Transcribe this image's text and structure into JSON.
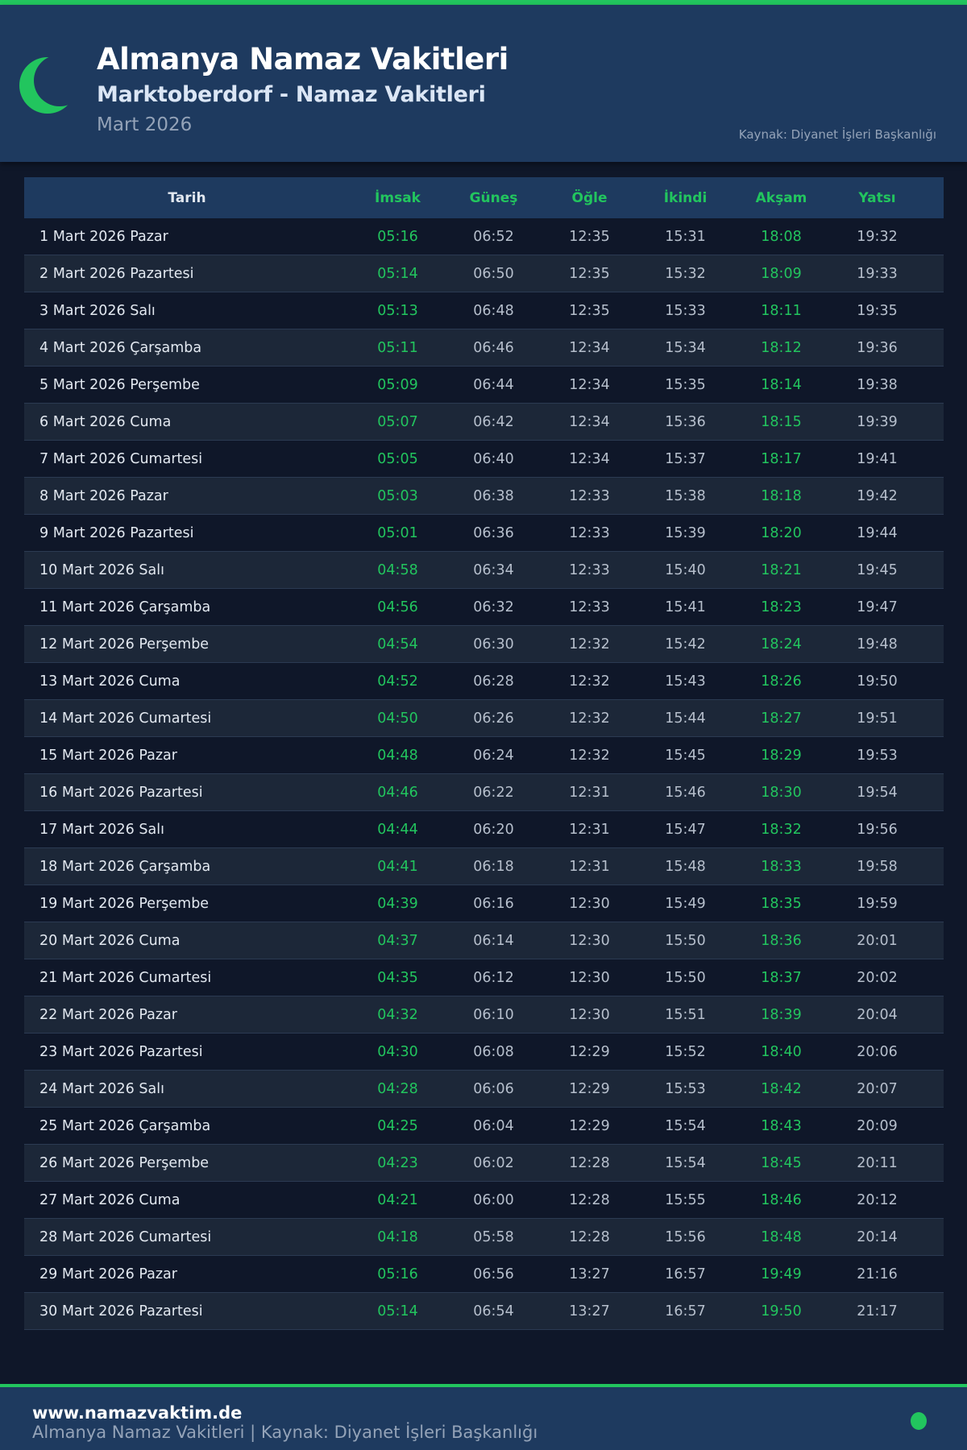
{
  "header": {
    "title": "Almanya Namaz Vakitleri",
    "subtitle": "Marktoberdorf - Namaz Vakitleri",
    "month": "Mart 2026",
    "source": "Kaynak: Diyanet İşleri Başkanlığı",
    "icon": "crescent-moon-icon"
  },
  "colors": {
    "accent": "#22c55e",
    "header_bg": "#1e3a5f",
    "page_bg": "#0f1729"
  },
  "table": {
    "columns": [
      "Tarih",
      "İmsak",
      "Güneş",
      "Öğle",
      "İkindi",
      "Akşam",
      "Yatsı"
    ],
    "rows": [
      [
        "1 Mart 2026 Pazar",
        "05:16",
        "06:52",
        "12:35",
        "15:31",
        "18:08",
        "19:32"
      ],
      [
        "2 Mart 2026 Pazartesi",
        "05:14",
        "06:50",
        "12:35",
        "15:32",
        "18:09",
        "19:33"
      ],
      [
        "3 Mart 2026 Salı",
        "05:13",
        "06:48",
        "12:35",
        "15:33",
        "18:11",
        "19:35"
      ],
      [
        "4 Mart 2026 Çarşamba",
        "05:11",
        "06:46",
        "12:34",
        "15:34",
        "18:12",
        "19:36"
      ],
      [
        "5 Mart 2026 Perşembe",
        "05:09",
        "06:44",
        "12:34",
        "15:35",
        "18:14",
        "19:38"
      ],
      [
        "6 Mart 2026 Cuma",
        "05:07",
        "06:42",
        "12:34",
        "15:36",
        "18:15",
        "19:39"
      ],
      [
        "7 Mart 2026 Cumartesi",
        "05:05",
        "06:40",
        "12:34",
        "15:37",
        "18:17",
        "19:41"
      ],
      [
        "8 Mart 2026 Pazar",
        "05:03",
        "06:38",
        "12:33",
        "15:38",
        "18:18",
        "19:42"
      ],
      [
        "9 Mart 2026 Pazartesi",
        "05:01",
        "06:36",
        "12:33",
        "15:39",
        "18:20",
        "19:44"
      ],
      [
        "10 Mart 2026 Salı",
        "04:58",
        "06:34",
        "12:33",
        "15:40",
        "18:21",
        "19:45"
      ],
      [
        "11 Mart 2026 Çarşamba",
        "04:56",
        "06:32",
        "12:33",
        "15:41",
        "18:23",
        "19:47"
      ],
      [
        "12 Mart 2026 Perşembe",
        "04:54",
        "06:30",
        "12:32",
        "15:42",
        "18:24",
        "19:48"
      ],
      [
        "13 Mart 2026 Cuma",
        "04:52",
        "06:28",
        "12:32",
        "15:43",
        "18:26",
        "19:50"
      ],
      [
        "14 Mart 2026 Cumartesi",
        "04:50",
        "06:26",
        "12:32",
        "15:44",
        "18:27",
        "19:51"
      ],
      [
        "15 Mart 2026 Pazar",
        "04:48",
        "06:24",
        "12:32",
        "15:45",
        "18:29",
        "19:53"
      ],
      [
        "16 Mart 2026 Pazartesi",
        "04:46",
        "06:22",
        "12:31",
        "15:46",
        "18:30",
        "19:54"
      ],
      [
        "17 Mart 2026 Salı",
        "04:44",
        "06:20",
        "12:31",
        "15:47",
        "18:32",
        "19:56"
      ],
      [
        "18 Mart 2026 Çarşamba",
        "04:41",
        "06:18",
        "12:31",
        "15:48",
        "18:33",
        "19:58"
      ],
      [
        "19 Mart 2026 Perşembe",
        "04:39",
        "06:16",
        "12:30",
        "15:49",
        "18:35",
        "19:59"
      ],
      [
        "20 Mart 2026 Cuma",
        "04:37",
        "06:14",
        "12:30",
        "15:50",
        "18:36",
        "20:01"
      ],
      [
        "21 Mart 2026 Cumartesi",
        "04:35",
        "06:12",
        "12:30",
        "15:50",
        "18:37",
        "20:02"
      ],
      [
        "22 Mart 2026 Pazar",
        "04:32",
        "06:10",
        "12:30",
        "15:51",
        "18:39",
        "20:04"
      ],
      [
        "23 Mart 2026 Pazartesi",
        "04:30",
        "06:08",
        "12:29",
        "15:52",
        "18:40",
        "20:06"
      ],
      [
        "24 Mart 2026 Salı",
        "04:28",
        "06:06",
        "12:29",
        "15:53",
        "18:42",
        "20:07"
      ],
      [
        "25 Mart 2026 Çarşamba",
        "04:25",
        "06:04",
        "12:29",
        "15:54",
        "18:43",
        "20:09"
      ],
      [
        "26 Mart 2026 Perşembe",
        "04:23",
        "06:02",
        "12:28",
        "15:54",
        "18:45",
        "20:11"
      ],
      [
        "27 Mart 2026 Cuma",
        "04:21",
        "06:00",
        "12:28",
        "15:55",
        "18:46",
        "20:12"
      ],
      [
        "28 Mart 2026 Cumartesi",
        "04:18",
        "05:58",
        "12:28",
        "15:56",
        "18:48",
        "20:14"
      ],
      [
        "29 Mart 2026 Pazar",
        "05:16",
        "06:56",
        "13:27",
        "16:57",
        "19:49",
        "21:16"
      ],
      [
        "30 Mart 2026 Pazartesi",
        "05:14",
        "06:54",
        "13:27",
        "16:57",
        "19:50",
        "21:17"
      ]
    ]
  },
  "footer": {
    "site": "www.namazvaktim.de",
    "text": "Almanya Namaz Vakitleri | Kaynak: Diyanet İşleri Başkanlığı",
    "icon": "status-dot-icon"
  }
}
